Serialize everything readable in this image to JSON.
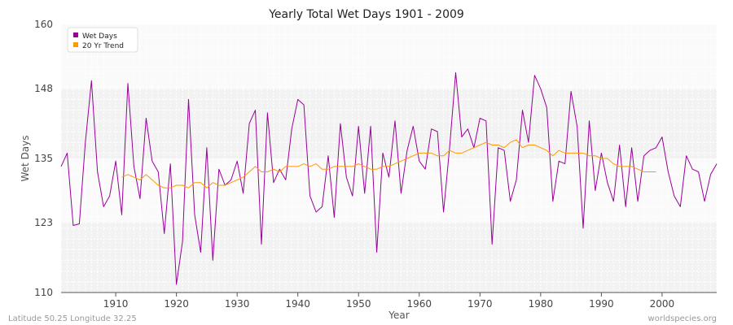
{
  "chart_data": {
    "type": "line",
    "title": "Yearly Total Wet Days 1901 - 2009",
    "xlabel": "Year",
    "ylabel": "Wet Days",
    "xlim": [
      1901,
      2009
    ],
    "ylim": [
      110,
      160
    ],
    "yticks": [
      110,
      123,
      135,
      148,
      160
    ],
    "xticks": [
      1910,
      1920,
      1930,
      1940,
      1950,
      1960,
      1970,
      1980,
      1990,
      2000
    ],
    "grid": true,
    "legend_position": "top-left",
    "series": [
      {
        "name": "Wet Days",
        "color": "#990099",
        "x": [
          1901,
          1902,
          1903,
          1904,
          1905,
          1906,
          1907,
          1908,
          1909,
          1910,
          1911,
          1912,
          1913,
          1914,
          1915,
          1916,
          1917,
          1918,
          1919,
          1920,
          1921,
          1922,
          1923,
          1924,
          1925,
          1926,
          1927,
          1928,
          1929,
          1930,
          1931,
          1932,
          1933,
          1934,
          1935,
          1936,
          1937,
          1938,
          1939,
          1940,
          1941,
          1942,
          1943,
          1944,
          1945,
          1946,
          1947,
          1948,
          1949,
          1950,
          1951,
          1952,
          1953,
          1954,
          1955,
          1956,
          1957,
          1958,
          1959,
          1960,
          1961,
          1962,
          1963,
          1964,
          1965,
          1966,
          1967,
          1968,
          1969,
          1970,
          1971,
          1972,
          1973,
          1974,
          1975,
          1976,
          1977,
          1978,
          1979,
          1980,
          1981,
          1982,
          1983,
          1984,
          1985,
          1986,
          1987,
          1988,
          1989,
          1990,
          1991,
          1992,
          1993,
          1994,
          1995,
          1996,
          1997,
          1998,
          1999,
          2000,
          2001,
          2002,
          2003,
          2004,
          2005,
          2006,
          2007,
          2008,
          2009
        ],
        "values": [
          133.5,
          136,
          122.5,
          122.8,
          138,
          149.5,
          132.5,
          126,
          128,
          134.5,
          124.5,
          149,
          133.5,
          127.5,
          142.5,
          134.5,
          132.5,
          121,
          134,
          111.5,
          119.5,
          146,
          124.5,
          117.5,
          137,
          116,
          133,
          130,
          131,
          134.5,
          128.5,
          141.5,
          144,
          119,
          143.5,
          130.5,
          133,
          131,
          140.5,
          146,
          145,
          128,
          125,
          126,
          135.5,
          124,
          141.5,
          131.5,
          128,
          141,
          128.5,
          141,
          117.5,
          136,
          131.5,
          142,
          128.5,
          136.5,
          141,
          134.5,
          133,
          140.5,
          140,
          125,
          137,
          151,
          139,
          140.5,
          137,
          142.5,
          142,
          119,
          137,
          136.5,
          127,
          131,
          144,
          138,
          150.5,
          148,
          144.5,
          127,
          134.5,
          134,
          147.5,
          141,
          122,
          142,
          129,
          136,
          130.5,
          127,
          137.5,
          126,
          137,
          127,
          135.5,
          136.5,
          137,
          139,
          132.5,
          128,
          126,
          135.5,
          133,
          132.5,
          127,
          132,
          134
        ]
      },
      {
        "name": "20 Yr Trend",
        "color": "#ff9900",
        "x": [
          1911,
          1912,
          1913,
          1914,
          1915,
          1916,
          1917,
          1918,
          1919,
          1920,
          1921,
          1922,
          1923,
          1924,
          1925,
          1926,
          1927,
          1928,
          1929,
          1930,
          1931,
          1932,
          1933,
          1934,
          1935,
          1936,
          1937,
          1938,
          1939,
          1940,
          1941,
          1942,
          1943,
          1944,
          1945,
          1946,
          1947,
          1948,
          1949,
          1950,
          1951,
          1952,
          1953,
          1954,
          1955,
          1956,
          1957,
          1958,
          1959,
          1960,
          1961,
          1962,
          1963,
          1964,
          1965,
          1966,
          1967,
          1968,
          1969,
          1970,
          1971,
          1972,
          1973,
          1974,
          1975,
          1976,
          1977,
          1978,
          1979,
          1980,
          1981,
          1982,
          1983,
          1984,
          1985,
          1986,
          1987,
          1988,
          1989,
          1990,
          1991,
          1992,
          1993,
          1994,
          1995,
          1996,
          1997,
          1998,
          1999
        ],
        "values": [
          131.5,
          132,
          131.5,
          131,
          132,
          131,
          130,
          129.5,
          129.5,
          130,
          130,
          129.5,
          130.5,
          130.5,
          129.5,
          130.5,
          130,
          130,
          130.5,
          131,
          131.5,
          132.5,
          133.5,
          132.5,
          132.5,
          133,
          132.5,
          133.5,
          133.5,
          133.5,
          134,
          133.5,
          134,
          133,
          133,
          133.5,
          133.5,
          133.5,
          133.5,
          134,
          133.5,
          133,
          133,
          133.5,
          133.5,
          134,
          134.5,
          135,
          135.5,
          136,
          136,
          136,
          135.5,
          135.5,
          136.5,
          136,
          136,
          136.5,
          137,
          137.5,
          138,
          137.5,
          137.5,
          137,
          138,
          138.5,
          137,
          137.5,
          137.5,
          137,
          136.5,
          135.5,
          136.5,
          136,
          136,
          136,
          136,
          135.5,
          135.5,
          135,
          135,
          134,
          133.5,
          133.5,
          133.5,
          133,
          132.5,
          132.5,
          132.5
        ]
      }
    ]
  },
  "footer": {
    "left": "Latitude 50.25 Longitude 32.25",
    "right": "worldspecies.org"
  }
}
